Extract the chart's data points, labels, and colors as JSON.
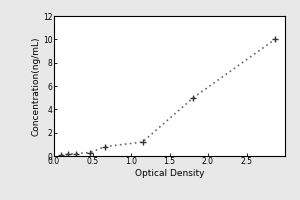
{
  "x": [
    0.094,
    0.188,
    0.282,
    0.47,
    0.658,
    1.15,
    1.81,
    2.87
  ],
  "y": [
    0.05,
    0.15,
    0.2,
    0.3,
    0.8,
    1.2,
    5.0,
    10.0
  ],
  "xlabel": "Optical Density",
  "ylabel": "Concentration(ng/mL)",
  "xlim": [
    0,
    3.0
  ],
  "ylim": [
    0,
    12
  ],
  "xticks": [
    0,
    0.5,
    1.0,
    1.5,
    2.0,
    2.5
  ],
  "yticks": [
    0,
    2,
    4,
    6,
    8,
    10,
    12
  ],
  "line_color": "#666666",
  "marker": "+",
  "marker_color": "#333333",
  "marker_size": 5,
  "line_style": ":",
  "line_width": 1.2,
  "bg_color": "#ffffff",
  "plot_bg_color": "#ffffff",
  "outer_bg_color": "#e8e8e8",
  "label_fontsize": 6.5,
  "tick_fontsize": 5.5
}
